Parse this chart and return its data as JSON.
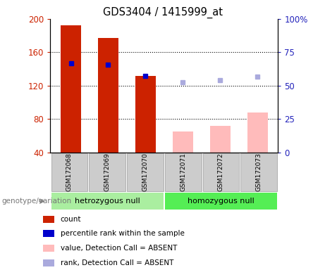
{
  "title": "GDS3404 / 1415999_at",
  "samples": [
    "GSM172068",
    "GSM172069",
    "GSM172070",
    "GSM172071",
    "GSM172072",
    "GSM172073"
  ],
  "groups": [
    "hetrozygous null",
    "homozygous null"
  ],
  "ylim_left": [
    40,
    200
  ],
  "ylim_right": [
    0,
    100
  ],
  "yticks_left": [
    40,
    80,
    120,
    160,
    200
  ],
  "yticks_right": [
    0,
    25,
    50,
    75,
    100
  ],
  "ytick_labels_right": [
    "0",
    "25",
    "50",
    "75",
    "100%"
  ],
  "bar_values": [
    192,
    177,
    132,
    65,
    72,
    88
  ],
  "bar_colors": [
    "#cc2200",
    "#cc2200",
    "#cc2200",
    "#ffbbbb",
    "#ffbbbb",
    "#ffbbbb"
  ],
  "blue_square_values": [
    147,
    145,
    132,
    null,
    null,
    null
  ],
  "light_blue_square_values": [
    null,
    null,
    null,
    124,
    127,
    131
  ],
  "left_ylabel_color": "#cc2200",
  "right_ylabel_color": "#2222bb",
  "grid_dotted_at": [
    80,
    120,
    160
  ],
  "legend_items": [
    {
      "color": "#cc2200",
      "label": "count"
    },
    {
      "color": "#0000cc",
      "label": "percentile rank within the sample"
    },
    {
      "color": "#ffbbbb",
      "label": "value, Detection Call = ABSENT"
    },
    {
      "color": "#aaaadd",
      "label": "rank, Detection Call = ABSENT"
    }
  ],
  "genotype_label": "genotype/variation",
  "bar_width": 0.55,
  "x_positions": [
    0,
    1,
    2,
    3,
    4,
    5
  ],
  "group1_color": "#aaeea0",
  "group2_color": "#55ee55",
  "sample_box_color": "#cccccc",
  "sample_box_edge": "#999999"
}
